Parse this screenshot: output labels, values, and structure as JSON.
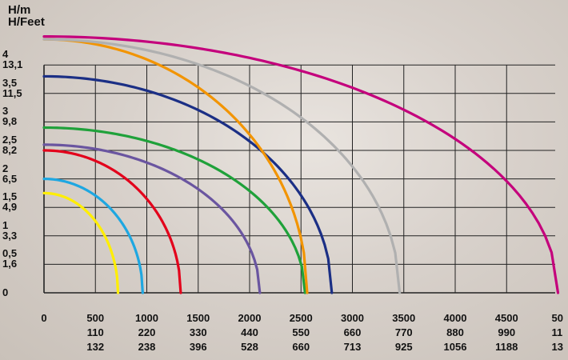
{
  "units": {
    "y_primary": "H/m",
    "y_secondary": "H/Feet"
  },
  "chart_data": {
    "type": "line",
    "xlabel": "",
    "ylabel": "H/m",
    "xlim": [
      0,
      5000
    ],
    "ylim": [
      0,
      4
    ],
    "y_ticks": [
      {
        "value": 4,
        "labels": [
          "4",
          "13,1"
        ]
      },
      {
        "value": 3.5,
        "labels": [
          "3,5",
          "11,5"
        ]
      },
      {
        "value": 3,
        "labels": [
          "3",
          "9,8"
        ]
      },
      {
        "value": 2.5,
        "labels": [
          "2,5",
          "8,2"
        ]
      },
      {
        "value": 2,
        "labels": [
          "2",
          "6,5"
        ]
      },
      {
        "value": 1.5,
        "labels": [
          "1,5",
          "4,9"
        ]
      },
      {
        "value": 1,
        "labels": [
          "1",
          "3,3"
        ]
      },
      {
        "value": 0.5,
        "labels": [
          "0,5",
          "1,6"
        ]
      },
      {
        "value": 0,
        "labels": [
          "0"
        ]
      }
    ],
    "x_ticks": [
      {
        "value": 0,
        "labels": [
          "0"
        ]
      },
      {
        "value": 500,
        "labels": [
          "500",
          "110",
          "132"
        ]
      },
      {
        "value": 1000,
        "labels": [
          "1000",
          "220",
          "238"
        ]
      },
      {
        "value": 1500,
        "labels": [
          "1500",
          "330",
          "396"
        ]
      },
      {
        "value": 2000,
        "labels": [
          "2000",
          "440",
          "528"
        ]
      },
      {
        "value": 2500,
        "labels": [
          "2500",
          "550",
          "660"
        ]
      },
      {
        "value": 3000,
        "labels": [
          "3000",
          "660",
          "713"
        ]
      },
      {
        "value": 3500,
        "labels": [
          "3500",
          "770",
          "925"
        ]
      },
      {
        "value": 4000,
        "labels": [
          "4000",
          "880",
          "1056"
        ]
      },
      {
        "value": 4500,
        "labels": [
          "4500",
          "990",
          "1188"
        ]
      },
      {
        "value": 5000,
        "labels": [
          "50",
          "11",
          "13"
        ]
      }
    ],
    "grid": true,
    "series": [
      {
        "color": "#ffee00",
        "h0": 1.75,
        "qmax": 720
      },
      {
        "color": "#1ea7e1",
        "h0": 2.0,
        "qmax": 960
      },
      {
        "color": "#e3001b",
        "h0": 2.5,
        "qmax": 1330
      },
      {
        "color": "#6a55a0",
        "h0": 2.6,
        "qmax": 2100
      },
      {
        "color": "#1fa13a",
        "h0": 2.9,
        "qmax": 2540
      },
      {
        "color": "#1b2f85",
        "h0": 3.8,
        "qmax": 2800
      },
      {
        "color": "#f29400",
        "h0": 4.45,
        "qmax": 2560
      },
      {
        "color": "#b0b0b0",
        "h0": 4.45,
        "qmax": 3460
      },
      {
        "color": "#c4007c",
        "h0": 4.5,
        "qmax": 5000
      }
    ]
  }
}
